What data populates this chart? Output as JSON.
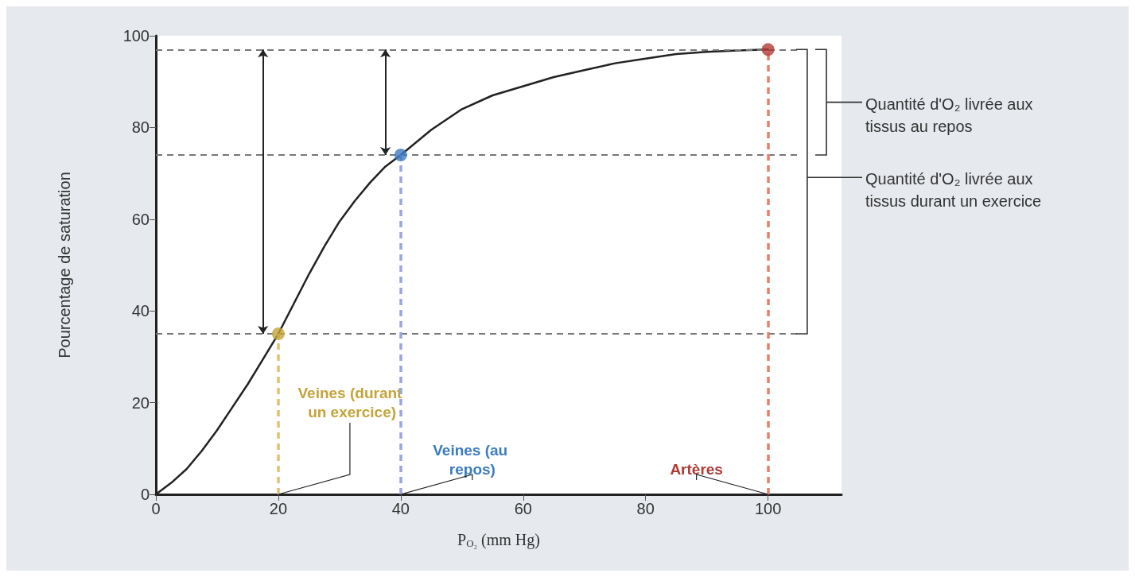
{
  "chart_data": {
    "type": "line",
    "xlabel": "P$_{O₂}$ (mm Hg)",
    "ylabel": "Pourcentage de saturation",
    "xlim": [
      0,
      112
    ],
    "xticks": [
      0,
      20,
      40,
      60,
      80,
      100
    ],
    "ylim": [
      0,
      100
    ],
    "yticks": [
      0,
      20,
      40,
      60,
      80,
      100
    ],
    "grid": false,
    "series": [
      {
        "color": "#222222",
        "marker": "none",
        "line_style": "solid",
        "x": [
          0,
          2.5,
          5,
          7.5,
          10,
          12.5,
          15,
          17.5,
          20,
          22.5,
          25,
          27.5,
          30,
          32.5,
          35,
          37.5,
          40,
          45,
          50,
          55,
          60,
          65,
          70,
          75,
          80,
          85,
          90,
          95,
          100
        ],
        "values": [
          0,
          2.5,
          5.5,
          9.5,
          14,
          19,
          24,
          29.5,
          35,
          41.5,
          48,
          54,
          59.5,
          64,
          68,
          71.5,
          74,
          79.5,
          84,
          87,
          89,
          91,
          92.5,
          94,
          95,
          96,
          96.5,
          96.8,
          97
        ]
      },
      {
        "type": "scatter",
        "marker": "circle",
        "x": [
          20,
          40,
          100
        ],
        "values": [
          35,
          74,
          97
        ],
        "colors": [
          "#c4a43a",
          "#3b7cbf",
          "#b03a35"
        ]
      }
    ],
    "ref_lines": [
      {
        "axis": "y",
        "value": 97,
        "color": "#777777",
        "line_style": "dashed"
      },
      {
        "axis": "y",
        "value": 74,
        "color": "#777777",
        "line_style": "dashed"
      },
      {
        "axis": "y",
        "value": 35,
        "color": "#777777",
        "line_style": "dashed"
      },
      {
        "axis": "x",
        "value": 20,
        "color": "#dcc373",
        "line_style": "dashed"
      },
      {
        "axis": "x",
        "value": 40,
        "color": "#9aa6dc",
        "line_style": "dashed"
      },
      {
        "axis": "x",
        "value": 100,
        "color": "#e0826f",
        "line_style": "dashed"
      }
    ],
    "annotations": [
      {
        "text": "Veines (durant un exercice)",
        "x": 20,
        "y": 0
      },
      {
        "text": "Veines (au repos)",
        "x": 40,
        "y": 0
      },
      {
        "text": "Artères",
        "x": 100,
        "y": 0
      },
      "Quantité d'O₂ livrée aux tissus au repos",
      "Quantité d'O₂ livrée aux tissus durant un exercice"
    ]
  }
}
